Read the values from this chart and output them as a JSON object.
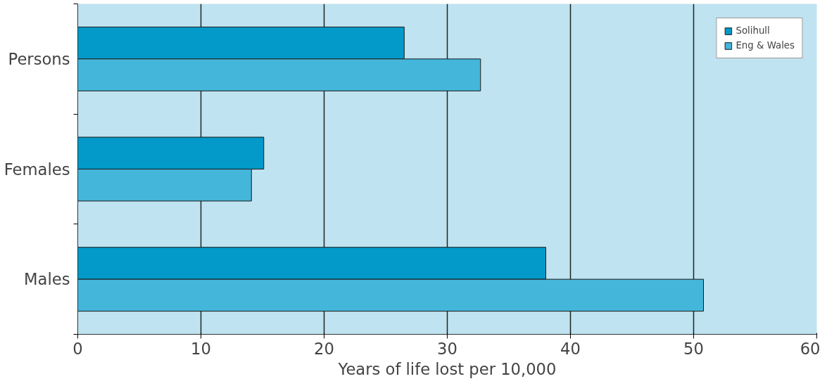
{
  "chart_data": {
    "type": "bar",
    "orientation": "horizontal",
    "xlabel": "Years of life lost per 10,000",
    "categories": [
      "Persons",
      "Females",
      "Males"
    ],
    "series": [
      {
        "name": "Solihull",
        "color": "#0399c9",
        "values": [
          26.5,
          15.1,
          38.0
        ]
      },
      {
        "name": "Eng & Wales",
        "color": "#44b6da",
        "values": [
          32.7,
          14.1,
          50.8
        ]
      }
    ],
    "xlim": [
      0,
      60
    ],
    "xticks": [
      0,
      10,
      20,
      30,
      40,
      50,
      60
    ],
    "grid": "x",
    "legend": "top right"
  }
}
